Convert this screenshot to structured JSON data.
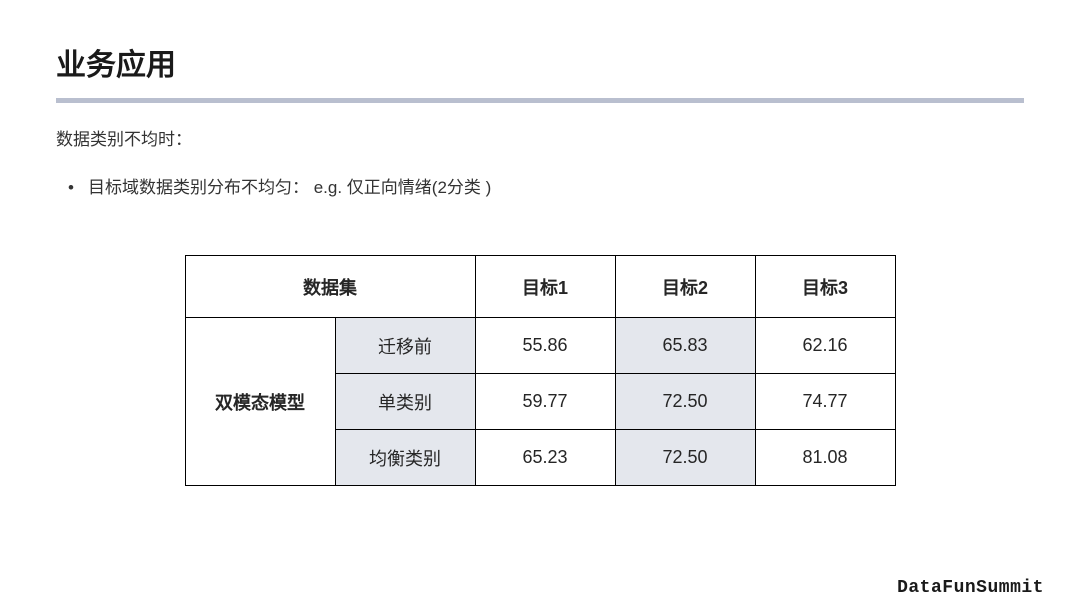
{
  "title": "业务应用",
  "subhead": "数据类别不均时：",
  "bullet1": "目标域数据类别分布不均匀：  e.g. 仅正向情绪(2分类 )",
  "table": {
    "header": {
      "dataset": "数据集",
      "t1": "目标1",
      "t2": "目标2",
      "t3": "目标3"
    },
    "model_label": "双模态模型",
    "rows": [
      {
        "sub": "迁移前",
        "t1": "55.86",
        "t2": "65.83",
        "t3": "62.16"
      },
      {
        "sub": "单类别",
        "t1": "59.77",
        "t2": "72.50",
        "t3": "74.77"
      },
      {
        "sub": "均衡类别",
        "t1": "65.23",
        "t2": "72.50",
        "t3": "81.08"
      }
    ]
  },
  "footer": "DataFunSummit",
  "colors": {
    "divider": "#b9bfcf",
    "shade": "#e4e7ed",
    "border": "#000000",
    "text": "#1a1a1a",
    "background": "#ffffff"
  }
}
